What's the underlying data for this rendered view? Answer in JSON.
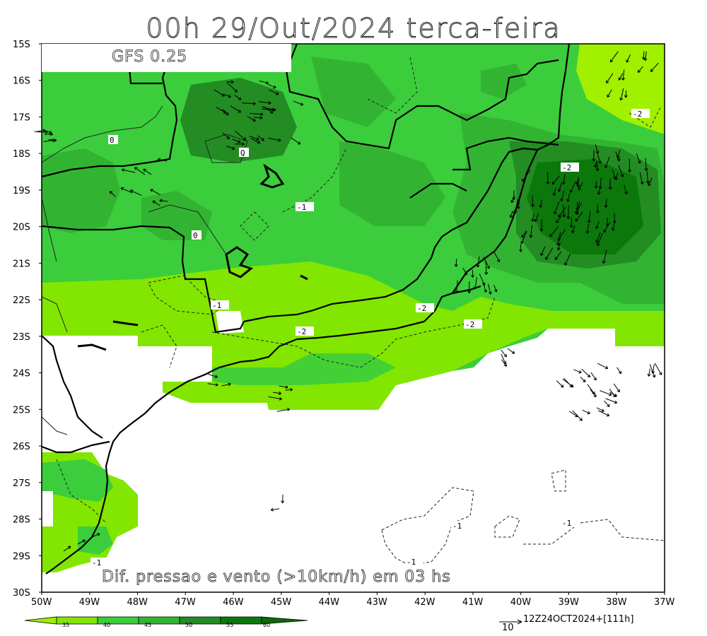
{
  "title": "00h 29/Out/2024 terca-feira",
  "model_label": "GFS 0.25",
  "caption": "Dif. pressao e vento (>10km/h) em 03 hs",
  "run_info": "12Z24OCT2024+[111h]",
  "vector_reference": "10",
  "latitude_labels": [
    "15S",
    "16S",
    "17S",
    "18S",
    "19S",
    "20S",
    "21S",
    "22S",
    "23S",
    "24S",
    "25S",
    "26S",
    "27S",
    "28S",
    "29S",
    "30S"
  ],
  "longitude_labels": [
    "50W",
    "49W",
    "48W",
    "47W",
    "46W",
    "45W",
    "44W",
    "43W",
    "42W",
    "41W",
    "40W",
    "39W",
    "38W",
    "37W"
  ],
  "colorbar": {
    "labels": [
      "35",
      "40",
      "45",
      "50",
      "55",
      "60"
    ],
    "colors": [
      "#a0f000",
      "#82e600",
      "#3ccd3c",
      "#32b432",
      "#238c23",
      "#0c780c"
    ]
  },
  "contour_labels": [
    "0",
    "Q",
    "0",
    "-1",
    "-1",
    "-2",
    "-2",
    "-2",
    "-2",
    "-2",
    "-1",
    "-1",
    "-1",
    "-1"
  ]
}
